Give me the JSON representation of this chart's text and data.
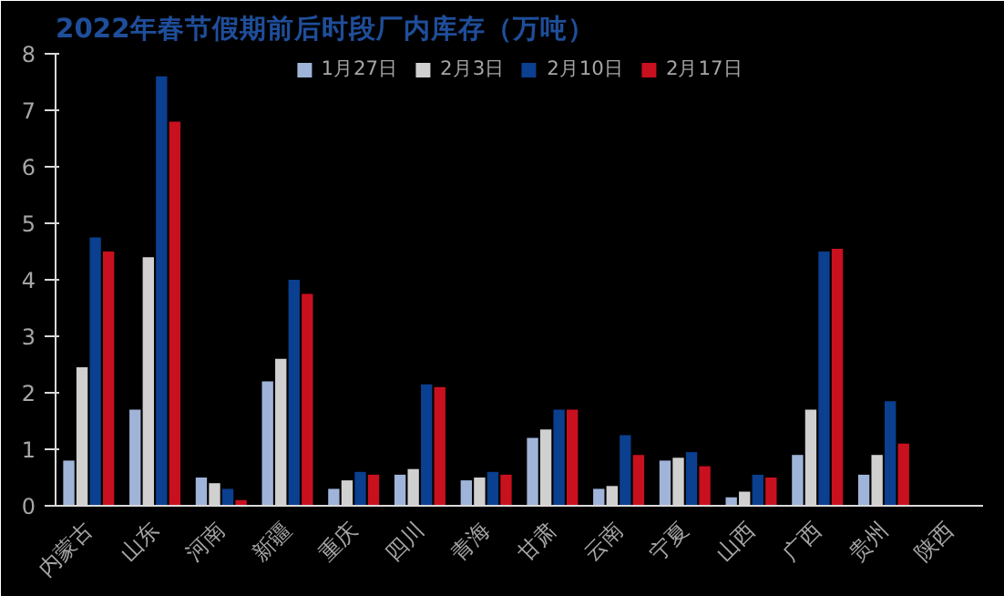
{
  "chart_data": {
    "type": "bar",
    "title": "2022年春节假期前后时段厂内库存（万吨）",
    "categories": [
      "内蒙古",
      "山东",
      "河南",
      "新疆",
      "重庆",
      "四川",
      "青海",
      "甘肃",
      "云南",
      "宁夏",
      "山西",
      "广西",
      "贵州",
      "陕西"
    ],
    "series": [
      {
        "name": "1月27日",
        "color": "#9fb4d8",
        "values": [
          0.8,
          1.7,
          0.5,
          2.2,
          0.3,
          0.55,
          0.45,
          1.2,
          0.3,
          0.8,
          0.15,
          0.9,
          0.55,
          null
        ]
      },
      {
        "name": "2月3日",
        "color": "#d0d0d0",
        "values": [
          2.45,
          4.4,
          0.4,
          2.6,
          0.45,
          0.65,
          0.5,
          1.35,
          0.35,
          0.85,
          0.25,
          1.7,
          0.9,
          null
        ]
      },
      {
        "name": "2月10日",
        "color": "#0b3f8f",
        "values": [
          4.75,
          7.6,
          0.3,
          4.0,
          0.6,
          2.15,
          0.6,
          1.7,
          1.25,
          0.95,
          0.55,
          4.5,
          1.85,
          null
        ]
      },
      {
        "name": "2月17日",
        "color": "#c8101e",
        "values": [
          4.5,
          6.8,
          0.1,
          3.75,
          0.55,
          2.1,
          0.55,
          1.7,
          0.9,
          0.7,
          0.5,
          4.55,
          1.1,
          null
        ]
      }
    ],
    "ylim": [
      0,
      8
    ],
    "yticks": [
      0,
      1,
      2,
      3,
      4,
      5,
      6,
      7,
      8
    ],
    "grid": false,
    "legend": "top"
  }
}
